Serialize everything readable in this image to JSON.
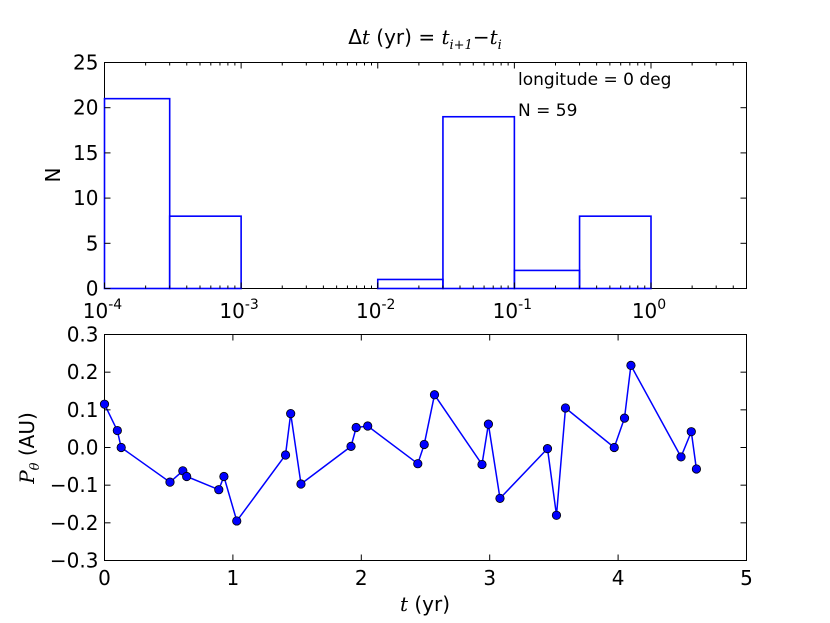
{
  "chart_data": [
    {
      "type": "bar",
      "title": "Δt (yr) = t_{i+1}−t_i",
      "title_parts": {
        "prefix": "Δ",
        "var": "t",
        "unit": " (yr) = ",
        "lhs": "t",
        "lhs_sub": "i+1",
        "minus": "−",
        "rhs": "t",
        "rhs_sub": "i"
      },
      "xlabel": "",
      "ylabel": "N",
      "xscale": "log",
      "xlim": [
        0.0001,
        5
      ],
      "ylim": [
        0,
        25
      ],
      "xtick_labels": [
        {
          "base": "10",
          "exp": "-4",
          "value": 0.0001
        },
        {
          "base": "10",
          "exp": "-3",
          "value": 0.001
        },
        {
          "base": "10",
          "exp": "-2",
          "value": 0.01
        },
        {
          "base": "10",
          "exp": "-1",
          "value": 0.1
        },
        {
          "base": "10",
          "exp": "0",
          "value": 1
        }
      ],
      "yticks": [
        "0",
        "5",
        "10",
        "15",
        "20",
        "25"
      ],
      "bin_edges": [
        0.0001,
        0.0003,
        0.001,
        0.003,
        0.01,
        0.03,
        0.1,
        0.3,
        1
      ],
      "values": [
        21,
        8,
        0,
        0,
        1,
        19,
        2,
        8
      ],
      "color": "#0000ff",
      "annotations": [
        "longitude = 0 deg",
        "N = 59"
      ],
      "grid": false
    },
    {
      "type": "line",
      "xlabel": "t (yr)",
      "xlabel_parts": {
        "var": "t",
        "unit": " (yr)"
      },
      "ylabel": "P_θ (AU)",
      "ylabel_parts": {
        "var": "P",
        "sub": "θ",
        "unit": " (AU)"
      },
      "xlim": [
        0,
        5
      ],
      "ylim": [
        -0.3,
        0.3
      ],
      "xticks": [
        "0",
        "1",
        "2",
        "3",
        "4",
        "5"
      ],
      "yticks": [
        "0.3",
        "0.2",
        "0.1",
        "0.0",
        "−0.1",
        "−0.2",
        "−0.3"
      ],
      "x": [
        0.0,
        0.1,
        0.13,
        0.51,
        0.61,
        0.64,
        0.89,
        0.93,
        1.03,
        1.41,
        1.45,
        1.53,
        1.92,
        1.96,
        2.05,
        2.44,
        2.49,
        2.57,
        2.94,
        2.99,
        3.08,
        3.45,
        3.52,
        3.59,
        3.97,
        4.05,
        4.1,
        4.49,
        4.57,
        4.61
      ],
      "y": [
        0.115,
        0.045,
        0.0,
        -0.092,
        -0.062,
        -0.077,
        -0.112,
        -0.077,
        -0.195,
        -0.02,
        0.09,
        -0.097,
        0.003,
        0.053,
        0.057,
        -0.043,
        0.008,
        0.14,
        -0.045,
        0.062,
        -0.135,
        -0.003,
        -0.18,
        0.105,
        0.0,
        0.078,
        0.218,
        -0.025,
        0.042,
        -0.057
      ],
      "color": "#0000ff",
      "marker": "circle",
      "grid": false
    }
  ]
}
